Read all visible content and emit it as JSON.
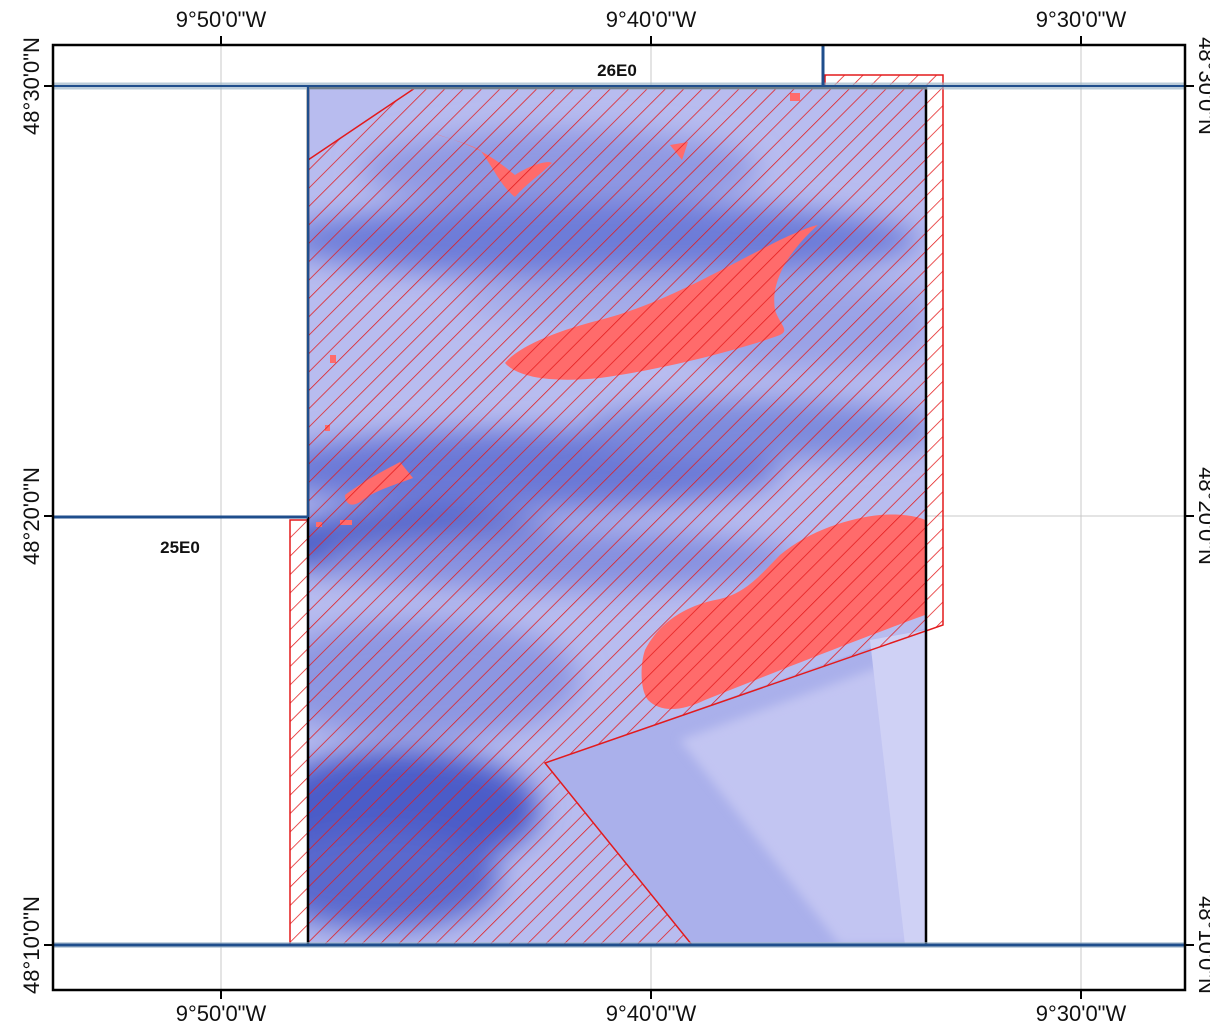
{
  "map": {
    "longitude_labels": [
      "9°50'0\"W",
      "9°40'0\"W",
      "9°30'0\"W"
    ],
    "latitude_labels": [
      "48°30'0\"N",
      "48°20'0\"N",
      "48°10'0\"N"
    ],
    "block_labels": [
      "26E0",
      "25E0"
    ],
    "colors": {
      "frame": "#000000",
      "grid": "#c8c8c8",
      "block_boundary": "#1f4e8c",
      "block_boundary_halo": "#9fb7c9",
      "hatch": "#e31a1c",
      "highlight_fill": "#ff6b6b",
      "bathymetry_light": "#c4c6f2",
      "bathymetry_mid": "#9aa2e6",
      "bathymetry_dark": "#3e4fbd"
    }
  }
}
